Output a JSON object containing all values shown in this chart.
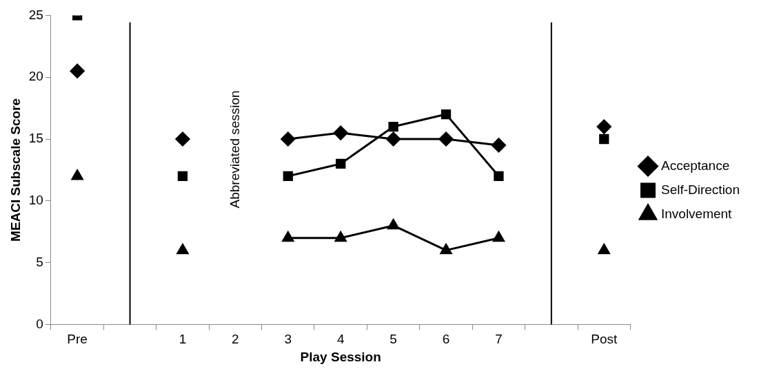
{
  "chart_data": {
    "type": "line",
    "xlabel": "Play Session",
    "ylabel": "MEACI Subscale Score",
    "categories": [
      "Pre",
      null,
      "1",
      "2",
      "3",
      "4",
      "5",
      "6",
      "7",
      null,
      "Post"
    ],
    "series": [
      {
        "name": "Acceptance",
        "color": "#000000",
        "marker": "diamond",
        "values": [
          20.5,
          null,
          15,
          null,
          15,
          15.5,
          15,
          15,
          14.5,
          null,
          16
        ]
      },
      {
        "name": "Self-Direction",
        "color": "#000000",
        "marker": "square",
        "values": [
          25,
          null,
          12,
          null,
          12,
          13,
          16,
          17,
          12,
          null,
          15
        ]
      },
      {
        "name": "Involvement",
        "color": "#000000",
        "marker": "triangle",
        "values": [
          12,
          null,
          6,
          null,
          7,
          7,
          8,
          6,
          7,
          null,
          6
        ]
      }
    ],
    "ylim": [
      0,
      25
    ],
    "yticks": [
      0,
      5,
      10,
      15,
      20,
      25
    ],
    "legend": "right",
    "annotations": [
      "Abbreviated session"
    ]
  }
}
